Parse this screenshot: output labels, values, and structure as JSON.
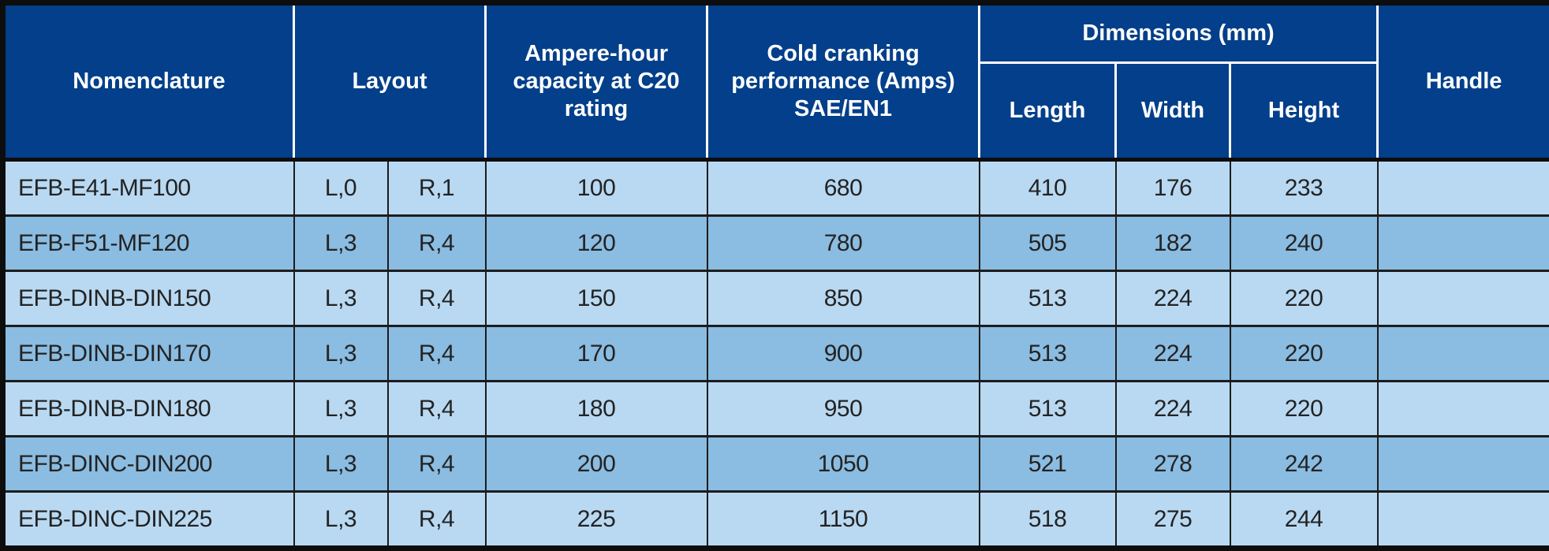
{
  "colors": {
    "header_bg": "#033f8a",
    "row_light": "#b9d9f2",
    "row_medium": "#8bbce1",
    "border_dark": "#1c1c1c",
    "outer_border": "#0d0d0d",
    "text_dark": "#232323",
    "header_text": "#ffffff"
  },
  "table": {
    "columns": {
      "nomenclature": "Nomenclature",
      "layout": "Layout",
      "ampere_hour": "Ampere-hour capacity at C20 rating",
      "cold_cranking": "Cold cranking performance (Amps) SAE/EN1",
      "dimensions_group": "Dimensions (mm)",
      "length": "Length",
      "width": "Width",
      "height": "Height",
      "handle": "Handle"
    },
    "column_keys": [
      "nomenclature",
      "layout_left",
      "layout_right",
      "ampere_hour",
      "cold_cranking",
      "length",
      "width",
      "height",
      "handle"
    ],
    "rows": [
      {
        "nomenclature": "EFB-E41-MF100",
        "layout_left": "L,0",
        "layout_right": "R,1",
        "ampere_hour": "100",
        "cold_cranking": "680",
        "length": "410",
        "width": "176",
        "height": "233",
        "handle": ""
      },
      {
        "nomenclature": "EFB-F51-MF120",
        "layout_left": "L,3",
        "layout_right": "R,4",
        "ampere_hour": "120",
        "cold_cranking": "780",
        "length": "505",
        "width": "182",
        "height": "240",
        "handle": ""
      },
      {
        "nomenclature": "EFB-DINB-DIN150",
        "layout_left": "L,3",
        "layout_right": "R,4",
        "ampere_hour": "150",
        "cold_cranking": "850",
        "length": "513",
        "width": "224",
        "height": "220",
        "handle": ""
      },
      {
        "nomenclature": "EFB-DINB-DIN170",
        "layout_left": "L,3",
        "layout_right": "R,4",
        "ampere_hour": "170",
        "cold_cranking": "900",
        "length": "513",
        "width": "224",
        "height": "220",
        "handle": ""
      },
      {
        "nomenclature": "EFB-DINB-DIN180",
        "layout_left": "L,3",
        "layout_right": "R,4",
        "ampere_hour": "180",
        "cold_cranking": "950",
        "length": "513",
        "width": "224",
        "height": "220",
        "handle": ""
      },
      {
        "nomenclature": "EFB-DINC-DIN200",
        "layout_left": "L,3",
        "layout_right": "R,4",
        "ampere_hour": "200",
        "cold_cranking": "1050",
        "length": "521",
        "width": "278",
        "height": "242",
        "handle": ""
      },
      {
        "nomenclature": "EFB-DINC-DIN225",
        "layout_left": "L,3",
        "layout_right": "R,4",
        "ampere_hour": "225",
        "cold_cranking": "1150",
        "length": "518",
        "width": "275",
        "height": "244",
        "handle": ""
      }
    ]
  }
}
